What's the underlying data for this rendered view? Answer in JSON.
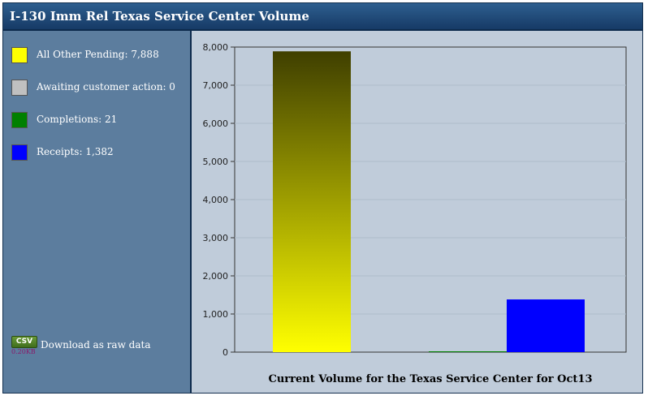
{
  "header": {
    "title": "I-130 Imm Rel Texas Service Center Volume"
  },
  "legend": {
    "items": [
      {
        "label": "All Other Pending: 7,888",
        "color": "#ffff00"
      },
      {
        "label": "Awaiting customer action: 0",
        "color": "#c0c0c0"
      },
      {
        "label": "Completions: 21",
        "color": "#008000"
      },
      {
        "label": "Receipts: 1,382",
        "color": "#0000ff"
      }
    ]
  },
  "download": {
    "badge": "CSV",
    "size": "0.20KB",
    "label": "Download as raw data"
  },
  "chart_data": {
    "type": "bar",
    "title": "Current Volume for the Texas Service Center for Oct13",
    "categories": [
      "All Other Pending",
      "Awaiting customer action",
      "Completions",
      "Receipts"
    ],
    "values": [
      7888,
      0,
      21,
      1382
    ],
    "colors": [
      "#ffff00",
      "#c0c0c0",
      "#008000",
      "#0000ff"
    ],
    "ylim": [
      0,
      8000
    ],
    "yticks": [
      "0",
      "1,000",
      "2,000",
      "3,000",
      "4,000",
      "5,000",
      "6,000",
      "7,000",
      "8,000"
    ],
    "grid": true,
    "xlabel": "",
    "ylabel": ""
  }
}
